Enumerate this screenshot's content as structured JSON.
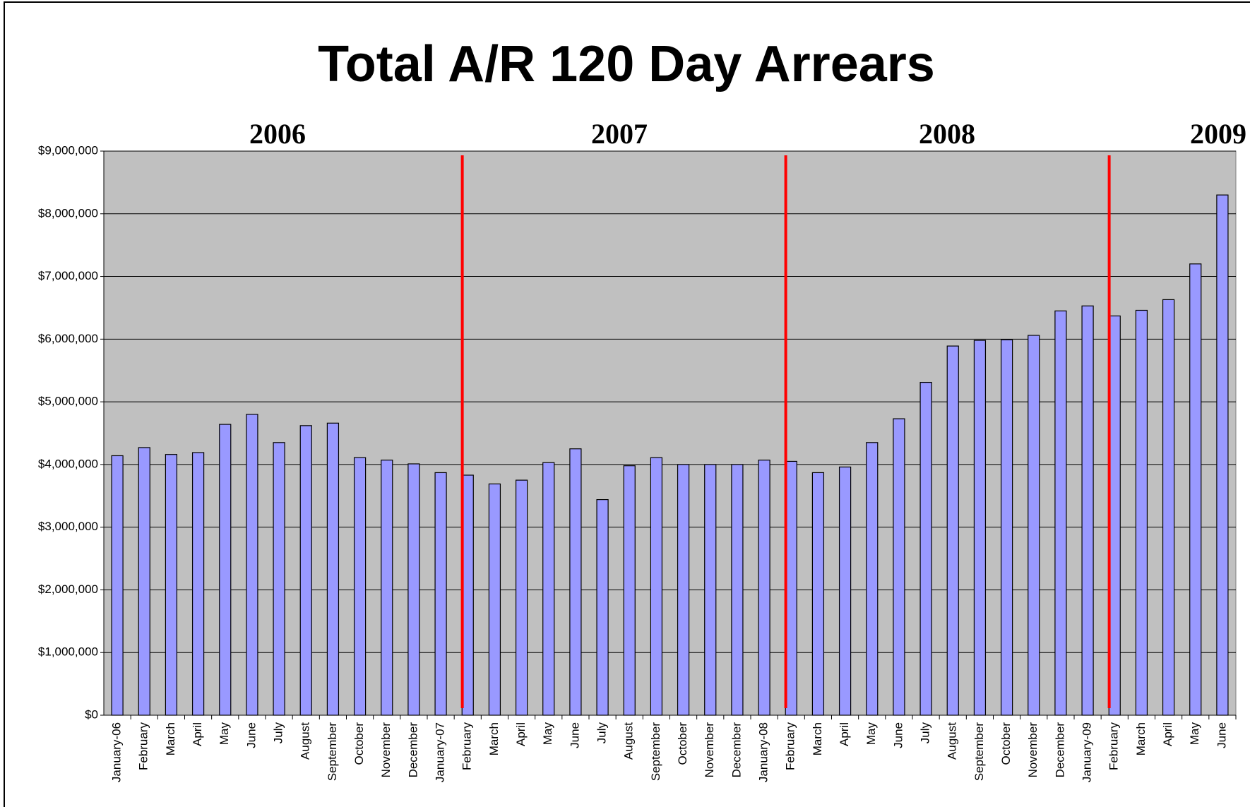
{
  "chart_data": {
    "type": "bar",
    "title": "Total A/R 120 Day Arrears",
    "annotations": [
      "2006",
      "2007",
      "2008",
      "2009"
    ],
    "categories": [
      "January-06",
      "February",
      "March",
      "April",
      "May",
      "June",
      "July",
      "August",
      "September",
      "October",
      "November",
      "December",
      "January-07",
      "February",
      "March",
      "April",
      "May",
      "June",
      "July",
      "August",
      "September",
      "October",
      "November",
      "December",
      "January-08",
      "February",
      "March",
      "April",
      "May",
      "June",
      "July",
      "August",
      "September",
      "October",
      "November",
      "December",
      "January-09",
      "February",
      "March",
      "April",
      "May",
      "June"
    ],
    "values": [
      4140000,
      4270000,
      4160000,
      4190000,
      4640000,
      4800000,
      4350000,
      4620000,
      4660000,
      4110000,
      4070000,
      4010000,
      3870000,
      3830000,
      3690000,
      3750000,
      4030000,
      4250000,
      3440000,
      3980000,
      4110000,
      4000000,
      4000000,
      4000000,
      4070000,
      4050000,
      3870000,
      3960000,
      4350000,
      4730000,
      5310000,
      5890000,
      5980000,
      5990000,
      6060000,
      6450000,
      6530000,
      6370000,
      6460000,
      6630000,
      7200000,
      8300000
    ],
    "color": "#9999ff",
    "ylim": [
      0,
      9000000
    ],
    "yticks": [
      {
        "value": 0,
        "label": "$0"
      },
      {
        "value": 1000000,
        "label": "$1,000,000"
      },
      {
        "value": 2000000,
        "label": "$2,000,000"
      },
      {
        "value": 3000000,
        "label": "$3,000,000"
      },
      {
        "value": 4000000,
        "label": "$4,000,000"
      },
      {
        "value": 5000000,
        "label": "$5,000,000"
      },
      {
        "value": 6000000,
        "label": "$6,000,000"
      },
      {
        "value": 7000000,
        "label": "$7,000,000"
      },
      {
        "value": 8000000,
        "label": "$8,000,000"
      },
      {
        "value": 9000000,
        "label": "$9,000,000"
      }
    ],
    "grid": true
  }
}
